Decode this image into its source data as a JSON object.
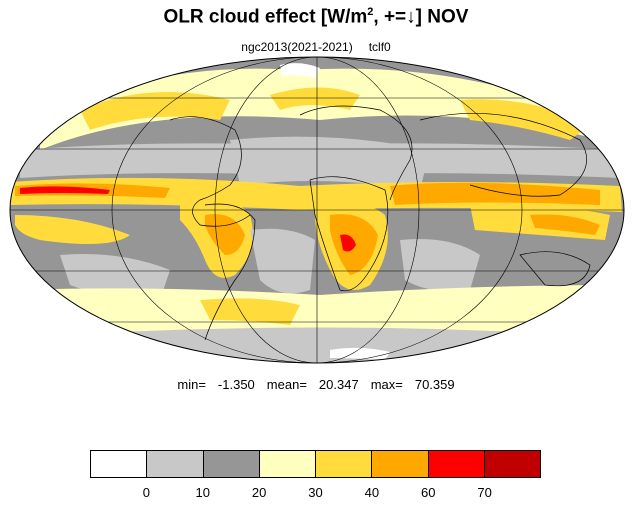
{
  "title": {
    "main": "OLR cloud effect [W/m",
    "sup": "2",
    "tail": ", +=↓]  NOV"
  },
  "subtitle": {
    "left": "ngc2013(2021-2021)",
    "right": "tclf0"
  },
  "stats": {
    "min_label": "min=",
    "min": "-1.350",
    "mean_label": "mean=",
    "mean": "20.347",
    "max_label": "max=",
    "max": "70.359"
  },
  "colorbar": {
    "colors": [
      "#ffffff",
      "#c8c8c8",
      "#969696",
      "#ffffc0",
      "#ffdc3c",
      "#ffa800",
      "#ff0000",
      "#c00000"
    ],
    "ticks": [
      "0",
      "10",
      "20",
      "30",
      "40",
      "60",
      "70"
    ]
  },
  "map_colors": {
    "ocean_bg": "#969696",
    "light_gray": "#c8c8c8",
    "pale_yellow": "#ffffc0",
    "yellow": "#ffdc3c",
    "orange": "#ffa800",
    "red": "#ff0000",
    "dark_red": "#c00000",
    "coast": "#000000",
    "grid": "#000000"
  },
  "projection": "mollweide"
}
